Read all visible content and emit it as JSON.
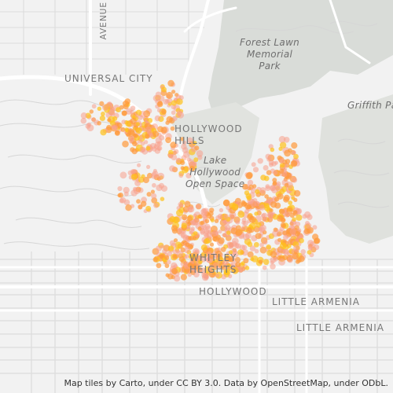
{
  "labels": {
    "universal_city": "UNIVERSAL CITY",
    "avenue": "AVENUE",
    "forest_lawn": "Forest Lawn\nMemorial\nPark",
    "hollywood_hills": "HOLLYWOOD\nHILLS",
    "lake_hollywood": "Lake\nHollywood\nOpen Space",
    "griffith": "Griffith Pa",
    "whitley_heights": "WHITLEY\nHEIGHTS",
    "hollywood": "HOLLYWOOD",
    "little_armenia_1": "LITTLE ARMENIA",
    "little_armenia_2": "LITTLE ARMENIA"
  },
  "attribution": "Map tiles by Carto, under CC BY 3.0. Data by OpenStreetMap, under ODbL.",
  "colors": {
    "background": "#f2f2f2",
    "park": "#d9dcd8",
    "major_road": "#ffffff",
    "street": "#dcdcdc",
    "dot_orange": "#ff9a3c",
    "dot_pink": "#f7a08d",
    "dot_yellow": "#ffc21a"
  }
}
